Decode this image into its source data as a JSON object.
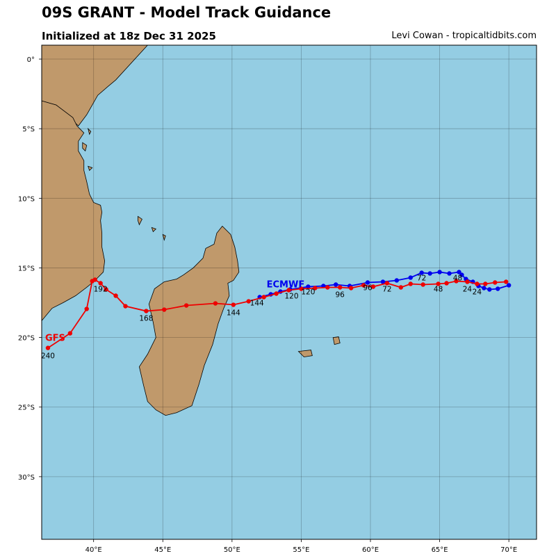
{
  "header": {
    "title": "09S GRANT - Model Track Guidance",
    "subtitle": "Initialized at 18z Dec 31 2025",
    "credit": "Levi Cowan - tropicaltidbits.com"
  },
  "colors": {
    "ocean": "#94cde3",
    "land": "#c0996b",
    "gfs": "#ee0000",
    "ecmwf": "#0000ee"
  },
  "chart_data": {
    "type": "map",
    "x_range": [
      36.25,
      72
    ],
    "y_range": [
      -34.5,
      1
    ],
    "x_ticks": [
      {
        "value": 40,
        "label": "40°E"
      },
      {
        "value": 45,
        "label": "45°E"
      },
      {
        "value": 50,
        "label": "50°E"
      },
      {
        "value": 55,
        "label": "55°E"
      },
      {
        "value": 60,
        "label": "60°E"
      },
      {
        "value": 65,
        "label": "65°E"
      },
      {
        "value": 70,
        "label": "70°E"
      }
    ],
    "y_ticks": [
      {
        "value": 0,
        "label": "0°"
      },
      {
        "value": -5,
        "label": "5°S"
      },
      {
        "value": -10,
        "label": "10°S"
      },
      {
        "value": -15,
        "label": "15°S"
      },
      {
        "value": -20,
        "label": "20°S"
      },
      {
        "value": -25,
        "label": "25°S"
      },
      {
        "value": -30,
        "label": "30°S"
      }
    ],
    "grid": true,
    "series": [
      {
        "name": "ECMWF",
        "color": "#0000ee",
        "points": [
          [
            70.0,
            -16.25
          ],
          [
            69.2,
            -16.5
          ],
          [
            68.6,
            -16.55
          ],
          [
            68.2,
            -16.45
          ],
          [
            67.8,
            -16.3
          ],
          [
            67.4,
            -16.0
          ],
          [
            66.9,
            -15.8
          ],
          [
            66.6,
            -15.5
          ],
          [
            66.4,
            -15.3
          ],
          [
            65.7,
            -15.4
          ],
          [
            65.0,
            -15.3
          ],
          [
            64.3,
            -15.4
          ],
          [
            63.7,
            -15.35
          ],
          [
            62.9,
            -15.7
          ],
          [
            61.9,
            -15.9
          ],
          [
            60.9,
            -16.0
          ],
          [
            59.8,
            -16.05
          ],
          [
            58.5,
            -16.3
          ],
          [
            57.5,
            -16.2
          ],
          [
            56.6,
            -16.3
          ],
          [
            55.5,
            -16.35
          ],
          [
            54.2,
            -16.55
          ],
          [
            53.5,
            -16.7
          ],
          [
            52.8,
            -16.9
          ],
          [
            52.0,
            -17.1
          ]
        ],
        "labels": [
          {
            "text": "24",
            "lon": 67.7,
            "lat": -16.9
          },
          {
            "text": "48",
            "lon": 66.3,
            "lat": -15.9
          },
          {
            "text": "72",
            "lon": 63.7,
            "lat": -15.9
          },
          {
            "text": "96",
            "lon": 59.8,
            "lat": -16.6
          },
          {
            "text": "120",
            "lon": 55.5,
            "lat": -16.9
          },
          {
            "text": "144",
            "lon": 51.8,
            "lat": -17.7
          }
        ],
        "name_label": {
          "lon": 52.5,
          "lat": -16.4
        }
      },
      {
        "name": "GFS",
        "color": "#ee0000",
        "points": [
          [
            69.8,
            -16.0
          ],
          [
            69.0,
            -16.05
          ],
          [
            68.3,
            -16.15
          ],
          [
            67.7,
            -16.15
          ],
          [
            67.0,
            -16.0
          ],
          [
            66.2,
            -15.95
          ],
          [
            65.5,
            -16.1
          ],
          [
            64.9,
            -16.15
          ],
          [
            63.8,
            -16.2
          ],
          [
            62.9,
            -16.15
          ],
          [
            62.2,
            -16.4
          ],
          [
            61.2,
            -16.1
          ],
          [
            60.2,
            -16.35
          ],
          [
            59.5,
            -16.25
          ],
          [
            58.6,
            -16.45
          ],
          [
            57.8,
            -16.4
          ],
          [
            56.9,
            -16.4
          ],
          [
            56.0,
            -16.45
          ],
          [
            55.0,
            -16.5
          ],
          [
            54.1,
            -16.6
          ],
          [
            53.2,
            -16.85
          ],
          [
            52.3,
            -17.1
          ],
          [
            51.2,
            -17.4
          ],
          [
            50.1,
            -17.65
          ],
          [
            48.8,
            -17.55
          ],
          [
            46.7,
            -17.7
          ],
          [
            45.1,
            -18.0
          ],
          [
            43.8,
            -18.1
          ],
          [
            42.3,
            -17.75
          ],
          [
            41.6,
            -17.0
          ],
          [
            40.9,
            -16.55
          ],
          [
            40.5,
            -16.1
          ],
          [
            40.1,
            -15.85
          ],
          [
            39.9,
            -15.95
          ],
          [
            39.5,
            -17.95
          ],
          [
            38.3,
            -19.7
          ],
          [
            36.7,
            -20.75
          ]
        ],
        "labels": [
          {
            "text": "24",
            "lon": 67.0,
            "lat": -16.7
          },
          {
            "text": "48",
            "lon": 64.9,
            "lat": -16.7
          },
          {
            "text": "72",
            "lon": 61.2,
            "lat": -16.7
          },
          {
            "text": "96",
            "lon": 57.8,
            "lat": -17.1
          },
          {
            "text": "120",
            "lon": 54.3,
            "lat": -17.2
          },
          {
            "text": "144",
            "lon": 50.1,
            "lat": -18.4
          },
          {
            "text": "168",
            "lon": 43.8,
            "lat": -18.8
          },
          {
            "text": "192",
            "lon": 40.5,
            "lat": -16.7
          },
          {
            "text": "240",
            "lon": 36.7,
            "lat": -21.5
          }
        ],
        "name_label": {
          "lon": 36.5,
          "lat": -20.25
        }
      }
    ],
    "land": {
      "africa": [
        [
          36.25,
          -3.0
        ],
        [
          37.3,
          -3.3
        ],
        [
          38.5,
          -4.2
        ],
        [
          38.8,
          -4.8
        ],
        [
          39.3,
          -5.3
        ],
        [
          38.9,
          -5.9
        ],
        [
          38.9,
          -6.6
        ],
        [
          39.3,
          -7.3
        ],
        [
          39.3,
          -8.0
        ],
        [
          39.5,
          -8.8
        ],
        [
          39.7,
          -9.7
        ],
        [
          40.0,
          -10.3
        ],
        [
          40.5,
          -10.5
        ],
        [
          40.6,
          -11.0
        ],
        [
          40.5,
          -11.6
        ],
        [
          40.6,
          -12.5
        ],
        [
          40.6,
          -13.5
        ],
        [
          40.8,
          -14.5
        ],
        [
          40.7,
          -15.3
        ],
        [
          40.1,
          -15.9
        ],
        [
          39.5,
          -16.4
        ],
        [
          38.7,
          -17.0
        ],
        [
          37.8,
          -17.5
        ],
        [
          37.0,
          -17.9
        ],
        [
          36.25,
          -18.8
        ]
      ],
      "africa_north": [
        [
          40.5,
          1
        ],
        [
          43.9,
          1
        ],
        [
          41.6,
          -1.5
        ],
        [
          41.0,
          -2.0
        ],
        [
          40.3,
          -2.6
        ],
        [
          39.5,
          -4.0
        ],
        [
          38.9,
          -4.8
        ],
        [
          37.3,
          -3.3
        ],
        [
          36.25,
          -3.0
        ],
        [
          36.25,
          1
        ]
      ],
      "madagascar": [
        [
          49.3,
          -12.0
        ],
        [
          49.9,
          -12.6
        ],
        [
          50.2,
          -13.5
        ],
        [
          50.4,
          -14.5
        ],
        [
          50.5,
          -15.3
        ],
        [
          50.1,
          -15.9
        ],
        [
          49.7,
          -16.1
        ],
        [
          49.8,
          -17.0
        ],
        [
          49.4,
          -17.9
        ],
        [
          49.0,
          -19.0
        ],
        [
          48.6,
          -20.5
        ],
        [
          48.0,
          -22.0
        ],
        [
          47.6,
          -23.4
        ],
        [
          47.1,
          -24.9
        ],
        [
          46.0,
          -25.4
        ],
        [
          45.2,
          -25.6
        ],
        [
          44.5,
          -25.2
        ],
        [
          43.9,
          -24.6
        ],
        [
          43.6,
          -23.4
        ],
        [
          43.3,
          -22.1
        ],
        [
          43.9,
          -21.2
        ],
        [
          44.5,
          -20.0
        ],
        [
          44.3,
          -18.9
        ],
        [
          44.0,
          -17.6
        ],
        [
          44.4,
          -16.5
        ],
        [
          45.1,
          -16.0
        ],
        [
          46.0,
          -15.8
        ],
        [
          46.5,
          -15.5
        ],
        [
          47.2,
          -15.0
        ],
        [
          47.9,
          -14.3
        ],
        [
          48.1,
          -13.6
        ],
        [
          48.7,
          -13.3
        ],
        [
          48.9,
          -12.5
        ]
      ],
      "islands": [
        [
          [
            54.8,
            -21.0
          ],
          [
            55.7,
            -20.9
          ],
          [
            55.8,
            -21.3
          ],
          [
            55.2,
            -21.4
          ]
        ],
        [
          [
            57.3,
            -20.0
          ],
          [
            57.7,
            -19.95
          ],
          [
            57.8,
            -20.4
          ],
          [
            57.4,
            -20.5
          ]
        ],
        [
          [
            43.2,
            -11.3
          ],
          [
            43.5,
            -11.5
          ],
          [
            43.3,
            -11.9
          ],
          [
            43.2,
            -11.6
          ]
        ],
        [
          [
            44.2,
            -12.1
          ],
          [
            44.5,
            -12.2
          ],
          [
            44.3,
            -12.4
          ]
        ],
        [
          [
            39.6,
            -5.0
          ],
          [
            39.8,
            -5.2
          ],
          [
            39.7,
            -5.4
          ]
        ],
        [
          [
            39.2,
            -6.0
          ],
          [
            39.5,
            -6.2
          ],
          [
            39.4,
            -6.6
          ],
          [
            39.2,
            -6.4
          ]
        ],
        [
          [
            39.6,
            -7.7
          ],
          [
            39.9,
            -7.8
          ],
          [
            39.7,
            -8.0
          ]
        ],
        [
          [
            45.0,
            -12.6
          ],
          [
            45.2,
            -12.7
          ],
          [
            45.1,
            -13.0
          ]
        ]
      ]
    }
  }
}
